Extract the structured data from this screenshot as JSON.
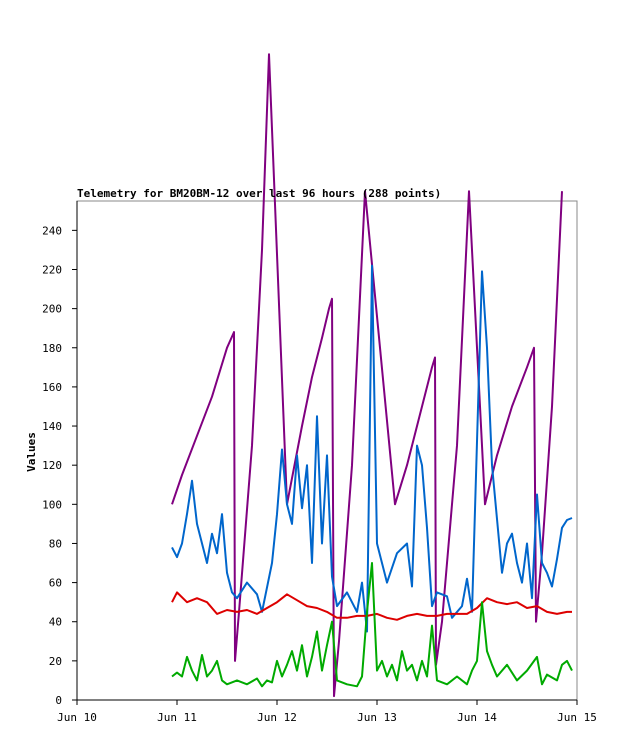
{
  "chart_data": {
    "type": "line",
    "title": "Telemetry for BM20BM-12 over last 96 hours (288 points)",
    "xlabel": "",
    "ylabel": "Values",
    "xlim": [
      "Jun 10",
      "Jun 15"
    ],
    "ylim": [
      0,
      255
    ],
    "x_ticks": [
      "Jun 10",
      "Jun 11",
      "Jun 12",
      "Jun 13",
      "Jun 14",
      "Jun 15"
    ],
    "y_ticks": [
      0,
      20,
      40,
      60,
      80,
      100,
      120,
      140,
      160,
      180,
      200,
      220,
      240
    ],
    "grid": false,
    "legend": false,
    "series": [
      {
        "color": "#800080",
        "points": [
          [
            10.95,
            100
          ],
          [
            11.05,
            115
          ],
          [
            11.2,
            135
          ],
          [
            11.35,
            155
          ],
          [
            11.5,
            180
          ],
          [
            11.57,
            188
          ],
          [
            11.58,
            20
          ],
          [
            11.62,
            45
          ],
          [
            11.75,
            130
          ],
          [
            11.85,
            230
          ],
          [
            11.92,
            330
          ],
          [
            12.1,
            100
          ],
          [
            12.25,
            140
          ],
          [
            12.35,
            165
          ],
          [
            12.45,
            185
          ],
          [
            12.52,
            200
          ],
          [
            12.55,
            205
          ],
          [
            12.57,
            2
          ],
          [
            12.62,
            30
          ],
          [
            12.75,
            120
          ],
          [
            12.88,
            260
          ],
          [
            13.18,
            100
          ],
          [
            13.3,
            120
          ],
          [
            13.45,
            150
          ],
          [
            13.55,
            170
          ],
          [
            13.58,
            175
          ],
          [
            13.59,
            18
          ],
          [
            13.65,
            40
          ],
          [
            13.8,
            130
          ],
          [
            13.92,
            260
          ],
          [
            14.08,
            100
          ],
          [
            14.2,
            125
          ],
          [
            14.35,
            150
          ],
          [
            14.5,
            170
          ],
          [
            14.57,
            180
          ],
          [
            14.59,
            40
          ],
          [
            14.65,
            75
          ],
          [
            14.75,
            150
          ],
          [
            14.85,
            260
          ]
        ]
      },
      {
        "color": "#0066cc",
        "points": [
          [
            10.95,
            78
          ],
          [
            11.0,
            73
          ],
          [
            11.05,
            80
          ],
          [
            11.1,
            95
          ],
          [
            11.15,
            112
          ],
          [
            11.2,
            90
          ],
          [
            11.3,
            70
          ],
          [
            11.35,
            85
          ],
          [
            11.4,
            75
          ],
          [
            11.45,
            95
          ],
          [
            11.5,
            65
          ],
          [
            11.55,
            55
          ],
          [
            11.6,
            52
          ],
          [
            11.7,
            60
          ],
          [
            11.8,
            54
          ],
          [
            11.85,
            45
          ],
          [
            11.95,
            70
          ],
          [
            12.0,
            95
          ],
          [
            12.05,
            128
          ],
          [
            12.1,
            100
          ],
          [
            12.15,
            90
          ],
          [
            12.2,
            125
          ],
          [
            12.25,
            98
          ],
          [
            12.3,
            120
          ],
          [
            12.35,
            70
          ],
          [
            12.4,
            145
          ],
          [
            12.45,
            80
          ],
          [
            12.5,
            125
          ],
          [
            12.55,
            63
          ],
          [
            12.6,
            48
          ],
          [
            12.7,
            55
          ],
          [
            12.8,
            45
          ],
          [
            12.85,
            60
          ],
          [
            12.9,
            35
          ],
          [
            12.95,
            222
          ],
          [
            13.0,
            80
          ],
          [
            13.1,
            60
          ],
          [
            13.2,
            75
          ],
          [
            13.3,
            80
          ],
          [
            13.35,
            58
          ],
          [
            13.4,
            130
          ],
          [
            13.45,
            120
          ],
          [
            13.5,
            88
          ],
          [
            13.55,
            48
          ],
          [
            13.6,
            55
          ],
          [
            13.7,
            53
          ],
          [
            13.75,
            42
          ],
          [
            13.85,
            48
          ],
          [
            13.9,
            62
          ],
          [
            13.95,
            45
          ],
          [
            14.05,
            219
          ],
          [
            14.1,
            180
          ],
          [
            14.15,
            120
          ],
          [
            14.25,
            65
          ],
          [
            14.3,
            80
          ],
          [
            14.35,
            85
          ],
          [
            14.4,
            70
          ],
          [
            14.45,
            60
          ],
          [
            14.5,
            80
          ],
          [
            14.55,
            52
          ],
          [
            14.6,
            105
          ],
          [
            14.65,
            70
          ],
          [
            14.7,
            65
          ],
          [
            14.75,
            58
          ],
          [
            14.8,
            72
          ],
          [
            14.85,
            88
          ],
          [
            14.9,
            92
          ],
          [
            14.95,
            93
          ]
        ]
      },
      {
        "color": "#dd0000",
        "points": [
          [
            10.95,
            50
          ],
          [
            11.0,
            55
          ],
          [
            11.1,
            50
          ],
          [
            11.2,
            52
          ],
          [
            11.3,
            50
          ],
          [
            11.4,
            44
          ],
          [
            11.5,
            46
          ],
          [
            11.6,
            45
          ],
          [
            11.7,
            46
          ],
          [
            11.8,
            44
          ],
          [
            11.9,
            47
          ],
          [
            12.0,
            50
          ],
          [
            12.1,
            54
          ],
          [
            12.2,
            51
          ],
          [
            12.3,
            48
          ],
          [
            12.4,
            47
          ],
          [
            12.5,
            45
          ],
          [
            12.6,
            42
          ],
          [
            12.7,
            42
          ],
          [
            12.8,
            43
          ],
          [
            12.9,
            43
          ],
          [
            13.0,
            44
          ],
          [
            13.1,
            42
          ],
          [
            13.2,
            41
          ],
          [
            13.3,
            43
          ],
          [
            13.4,
            44
          ],
          [
            13.5,
            43
          ],
          [
            13.6,
            43
          ],
          [
            13.7,
            44
          ],
          [
            13.8,
            44
          ],
          [
            13.9,
            44
          ],
          [
            14.0,
            47
          ],
          [
            14.1,
            52
          ],
          [
            14.2,
            50
          ],
          [
            14.3,
            49
          ],
          [
            14.4,
            50
          ],
          [
            14.5,
            47
          ],
          [
            14.6,
            48
          ],
          [
            14.7,
            45
          ],
          [
            14.8,
            44
          ],
          [
            14.9,
            45
          ],
          [
            14.95,
            45
          ]
        ]
      },
      {
        "color": "#00aa00",
        "points": [
          [
            10.95,
            12
          ],
          [
            11.0,
            14
          ],
          [
            11.05,
            12
          ],
          [
            11.1,
            22
          ],
          [
            11.15,
            15
          ],
          [
            11.2,
            10
          ],
          [
            11.25,
            23
          ],
          [
            11.3,
            12
          ],
          [
            11.35,
            15
          ],
          [
            11.4,
            20
          ],
          [
            11.45,
            10
          ],
          [
            11.5,
            8
          ],
          [
            11.6,
            10
          ],
          [
            11.7,
            8
          ],
          [
            11.8,
            11
          ],
          [
            11.85,
            7
          ],
          [
            11.9,
            10
          ],
          [
            11.95,
            9
          ],
          [
            12.0,
            20
          ],
          [
            12.05,
            12
          ],
          [
            12.1,
            18
          ],
          [
            12.15,
            25
          ],
          [
            12.2,
            15
          ],
          [
            12.25,
            28
          ],
          [
            12.3,
            12
          ],
          [
            12.35,
            22
          ],
          [
            12.4,
            35
          ],
          [
            12.45,
            15
          ],
          [
            12.5,
            28
          ],
          [
            12.55,
            40
          ],
          [
            12.6,
            10
          ],
          [
            12.7,
            8
          ],
          [
            12.8,
            7
          ],
          [
            12.85,
            12
          ],
          [
            12.9,
            45
          ],
          [
            12.95,
            70
          ],
          [
            13.0,
            15
          ],
          [
            13.05,
            20
          ],
          [
            13.1,
            12
          ],
          [
            13.15,
            18
          ],
          [
            13.2,
            10
          ],
          [
            13.25,
            25
          ],
          [
            13.3,
            15
          ],
          [
            13.35,
            18
          ],
          [
            13.4,
            10
          ],
          [
            13.45,
            20
          ],
          [
            13.5,
            12
          ],
          [
            13.55,
            38
          ],
          [
            13.6,
            10
          ],
          [
            13.7,
            8
          ],
          [
            13.8,
            12
          ],
          [
            13.9,
            8
          ],
          [
            13.95,
            15
          ],
          [
            14.0,
            20
          ],
          [
            14.05,
            50
          ],
          [
            14.1,
            25
          ],
          [
            14.15,
            18
          ],
          [
            14.2,
            12
          ],
          [
            14.3,
            18
          ],
          [
            14.4,
            10
          ],
          [
            14.5,
            15
          ],
          [
            14.6,
            22
          ],
          [
            14.65,
            8
          ],
          [
            14.7,
            13
          ],
          [
            14.8,
            10
          ],
          [
            14.85,
            18
          ],
          [
            14.9,
            20
          ],
          [
            14.95,
            15
          ]
        ]
      }
    ]
  }
}
